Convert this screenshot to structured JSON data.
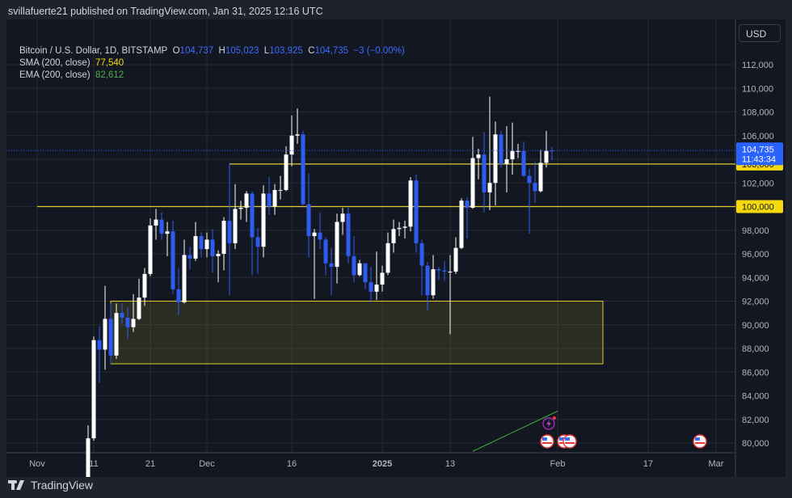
{
  "published": "svillafuerte21 published on TradingView.com, Jan 31, 2025 12:16 UTC",
  "legend": {
    "symbol": "Bitcoin / U.S. Dollar, 1D, BITSTAMP",
    "o_label": "O",
    "o": "104,737",
    "h_label": "H",
    "h": "105,023",
    "l_label": "L",
    "l": "103,925",
    "c_label": "C",
    "c": "104,735",
    "change": "−3 (−0.00%)",
    "sma_label": "SMA (200, close)",
    "sma_value": "77,540",
    "ema_label": "EMA (200, close)",
    "ema_value": "82,612"
  },
  "currency": "USD",
  "footer_brand": "TradingView",
  "colors": {
    "up": "#ffffff",
    "down": "#2f5cf0",
    "level": "#e0cc2c",
    "sma": "#3fa93a",
    "last_price": "#2962ff"
  },
  "chart_data": {
    "type": "candlestick",
    "ylim": [
      79000,
      114000
    ],
    "y_ticks": [
      "80,000",
      "82,000",
      "84,000",
      "86,000",
      "88,000",
      "90,000",
      "92,000",
      "94,000",
      "96,000",
      "98,000",
      "100,000",
      "102,000",
      "104,000",
      "106,000",
      "108,000",
      "110,000",
      "112,000"
    ],
    "x_ticks": [
      {
        "label": "Nov",
        "date": "2024-11-01"
      },
      {
        "label": "11",
        "date": "2024-11-11"
      },
      {
        "label": "21",
        "date": "2024-11-21"
      },
      {
        "label": "Dec",
        "date": "2024-12-01"
      },
      {
        "label": "16",
        "date": "2024-12-16"
      },
      {
        "label": "2025",
        "date": "2025-01-01"
      },
      {
        "label": "13",
        "date": "2025-01-13"
      },
      {
        "label": "Feb",
        "date": "2025-02-01"
      },
      {
        "label": "17",
        "date": "2025-02-17"
      },
      {
        "label": "Mar",
        "date": "2025-03-01"
      }
    ],
    "last_price": {
      "value": 104735,
      "label": "104,735",
      "countdown": "11:43:34"
    },
    "levels": [
      {
        "value": 103600,
        "label": "103,600",
        "from": "2024-12-05"
      },
      {
        "value": 100000,
        "label": "100,000",
        "from": "2024-11-01"
      }
    ],
    "zone": {
      "from": "2024-11-14",
      "to": "2025-02-09",
      "top": 92000,
      "bottom": 86700
    },
    "sma_visible": [
      [
        "2025-01-17",
        79300
      ],
      [
        "2025-02-01",
        82700
      ]
    ],
    "events": [
      "2025-01-31",
      "2025-02-03",
      "2025-02-04",
      "2025-02-27"
    ],
    "candles": [
      [
        "2024-11-10",
        76500,
        81500,
        76300,
        80400
      ],
      [
        "2024-11-11",
        80400,
        89000,
        80200,
        88700
      ],
      [
        "2024-11-12",
        88700,
        89900,
        85100,
        87900
      ],
      [
        "2024-11-13",
        87900,
        93300,
        86200,
        90500
      ],
      [
        "2024-11-14",
        90500,
        91800,
        86700,
        87400
      ],
      [
        "2024-11-15",
        87400,
        91800,
        87100,
        91000
      ],
      [
        "2024-11-16",
        91000,
        91800,
        90100,
        90600
      ],
      [
        "2024-11-17",
        90600,
        91500,
        88800,
        89800
      ],
      [
        "2024-11-18",
        89800,
        92600,
        89400,
        90500
      ],
      [
        "2024-11-19",
        90500,
        93900,
        90400,
        92300
      ],
      [
        "2024-11-20",
        92300,
        94800,
        91600,
        94300
      ],
      [
        "2024-11-21",
        94300,
        99000,
        94100,
        98400
      ],
      [
        "2024-11-22",
        98400,
        99800,
        97200,
        98900
      ],
      [
        "2024-11-23",
        98900,
        99500,
        97200,
        97700
      ],
      [
        "2024-11-24",
        97700,
        98700,
        95800,
        97900
      ],
      [
        "2024-11-25",
        97900,
        98800,
        92600,
        93000
      ],
      [
        "2024-11-26",
        93000,
        94800,
        90800,
        91900
      ],
      [
        "2024-11-27",
        91900,
        97200,
        91800,
        95900
      ],
      [
        "2024-11-28",
        95900,
        96600,
        94700,
        95600
      ],
      [
        "2024-11-29",
        95600,
        98700,
        95400,
        97500
      ],
      [
        "2024-11-30",
        97500,
        97800,
        95700,
        96400
      ],
      [
        "2024-12-01",
        96400,
        97800,
        95700,
        97200
      ],
      [
        "2024-12-02",
        97200,
        98100,
        94400,
        95800
      ],
      [
        "2024-12-03",
        95800,
        96300,
        93600,
        96000
      ],
      [
        "2024-12-04",
        96000,
        99100,
        94600,
        98800
      ],
      [
        "2024-12-05",
        98800,
        103700,
        92500,
        96900
      ],
      [
        "2024-12-06",
        96900,
        101900,
        96400,
        99800
      ],
      [
        "2024-12-07",
        99800,
        100500,
        98900,
        99900
      ],
      [
        "2024-12-08",
        99900,
        101300,
        98700,
        101100
      ],
      [
        "2024-12-09",
        101100,
        101300,
        94200,
        97400
      ],
      [
        "2024-12-10",
        97400,
        98200,
        94300,
        96600
      ],
      [
        "2024-12-11",
        96600,
        101800,
        95700,
        101100
      ],
      [
        "2024-12-12",
        101100,
        102500,
        99300,
        100000
      ],
      [
        "2024-12-13",
        100000,
        101900,
        99300,
        101400
      ],
      [
        "2024-12-14",
        101400,
        102600,
        100600,
        101400
      ],
      [
        "2024-12-15",
        101400,
        105100,
        101300,
        104400
      ],
      [
        "2024-12-16",
        104400,
        107700,
        103400,
        106000
      ],
      [
        "2024-12-17",
        106000,
        108300,
        105300,
        106100
      ],
      [
        "2024-12-18",
        106100,
        106400,
        100100,
        100200
      ],
      [
        "2024-12-19",
        100200,
        102800,
        95700,
        97500
      ],
      [
        "2024-12-20",
        97500,
        98100,
        92200,
        97800
      ],
      [
        "2024-12-21",
        97800,
        99500,
        96400,
        97200
      ],
      [
        "2024-12-22",
        97200,
        97400,
        94200,
        95200
      ],
      [
        "2024-12-23",
        95200,
        96500,
        92500,
        94900
      ],
      [
        "2024-12-24",
        94900,
        99400,
        93500,
        98700
      ],
      [
        "2024-12-25",
        98700,
        99900,
        97600,
        99400
      ],
      [
        "2024-12-26",
        99400,
        99900,
        95200,
        95800
      ],
      [
        "2024-12-27",
        95800,
        97500,
        93600,
        94200
      ],
      [
        "2024-12-28",
        94200,
        95500,
        94100,
        95200
      ],
      [
        "2024-12-29",
        95200,
        95200,
        93000,
        93600
      ],
      [
        "2024-12-30",
        93600,
        94900,
        91900,
        92800
      ],
      [
        "2024-12-31",
        92800,
        96200,
        92100,
        93400
      ],
      [
        "2025-01-01",
        93400,
        95000,
        92800,
        94400
      ],
      [
        "2025-01-02",
        94400,
        97800,
        94200,
        96900
      ],
      [
        "2025-01-03",
        96900,
        98900,
        96100,
        98100
      ],
      [
        "2025-01-04",
        98100,
        98700,
        97500,
        98200
      ],
      [
        "2025-01-05",
        98200,
        98800,
        97300,
        98300
      ],
      [
        "2025-01-06",
        98300,
        102500,
        97900,
        102200
      ],
      [
        "2025-01-07",
        102200,
        102700,
        96100,
        96900
      ],
      [
        "2025-01-08",
        96900,
        97200,
        92500,
        95000
      ],
      [
        "2025-01-09",
        95000,
        95300,
        91200,
        92500
      ],
      [
        "2025-01-10",
        92500,
        95900,
        92200,
        94700
      ],
      [
        "2025-01-11",
        94700,
        94900,
        93800,
        94600
      ],
      [
        "2025-01-12",
        94600,
        95400,
        93700,
        94500
      ],
      [
        "2025-01-13",
        94500,
        95900,
        89200,
        94500
      ],
      [
        "2025-01-14",
        94500,
        97400,
        94300,
        96500
      ],
      [
        "2025-01-15",
        96500,
        100700,
        96400,
        100500
      ],
      [
        "2025-01-16",
        100500,
        100800,
        97300,
        99900
      ],
      [
        "2025-01-17",
        99900,
        105900,
        99800,
        104100
      ],
      [
        "2025-01-18",
        104100,
        104900,
        102300,
        104400
      ],
      [
        "2025-01-19",
        104400,
        106300,
        99500,
        101200
      ],
      [
        "2025-01-20",
        101200,
        109300,
        99700,
        102000
      ],
      [
        "2025-01-21",
        102000,
        107200,
        100100,
        106100
      ],
      [
        "2025-01-22",
        106100,
        106400,
        103300,
        103600
      ],
      [
        "2025-01-23",
        103600,
        106800,
        101200,
        104000
      ],
      [
        "2025-01-24",
        104000,
        107100,
        102700,
        104700
      ],
      [
        "2025-01-25",
        104700,
        105300,
        104100,
        104700
      ],
      [
        "2025-01-26",
        104700,
        105500,
        102500,
        102600
      ],
      [
        "2025-01-27",
        102600,
        103200,
        97700,
        102000
      ],
      [
        "2025-01-28",
        102000,
        103800,
        100300,
        101300
      ],
      [
        "2025-01-29",
        101300,
        104800,
        101200,
        103700
      ],
      [
        "2025-01-30",
        103700,
        106400,
        103300,
        104700
      ],
      [
        "2025-01-31",
        104737,
        105023,
        103925,
        104735
      ]
    ]
  }
}
